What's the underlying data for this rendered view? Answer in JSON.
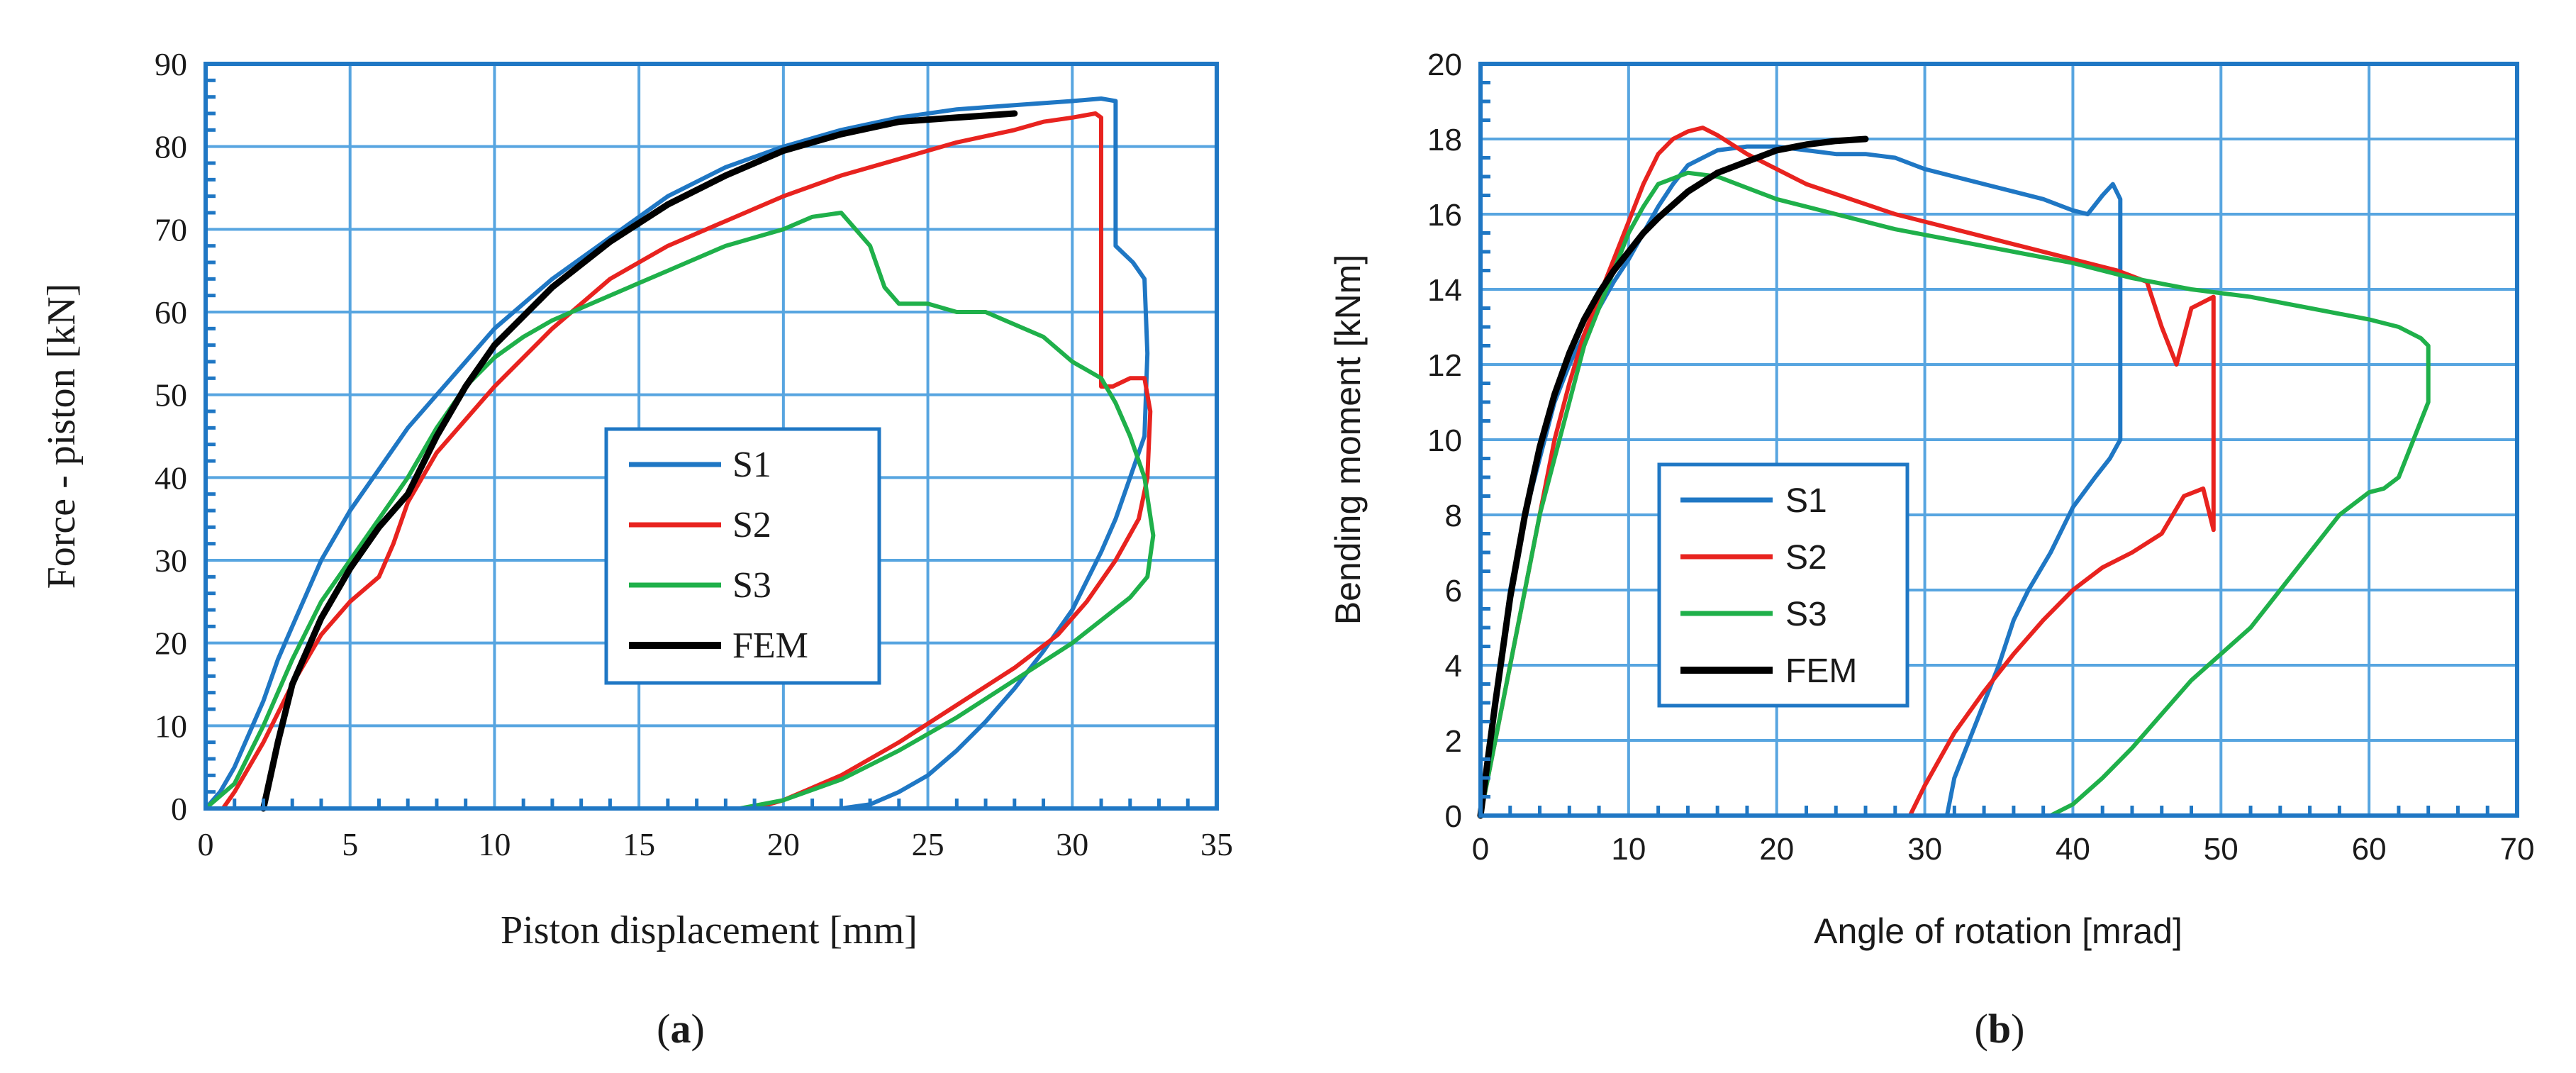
{
  "chart_data": [
    {
      "type": "line",
      "panel": "a",
      "caption_open": "(",
      "caption_letter": "a",
      "caption_close": ")",
      "title": "",
      "xlabel": "Piston displacement [mm]",
      "ylabel": "Force - piston [kN]",
      "xlim": [
        0,
        35
      ],
      "ylim": [
        0,
        90
      ],
      "xticks": [
        0,
        5,
        10,
        15,
        20,
        25,
        30,
        35
      ],
      "yticks": [
        0,
        10,
        20,
        30,
        40,
        50,
        60,
        70,
        80,
        90
      ],
      "grid": true,
      "legend": "center",
      "series": [
        {
          "name": "S1",
          "color": "#1f77c4",
          "x": [
            0,
            0.5,
            1,
            1.5,
            2,
            2.5,
            3,
            3.5,
            4,
            5,
            6,
            7,
            8,
            9,
            10,
            12,
            14,
            16,
            18,
            20,
            22,
            24,
            26,
            28,
            30,
            31,
            31.5,
            31.5,
            32.1,
            32.5,
            32.6,
            32.5,
            32,
            31.5,
            31,
            30,
            29,
            28,
            27,
            26,
            25,
            24,
            23,
            22
          ],
          "y": [
            0,
            2,
            5,
            9,
            13,
            18,
            22,
            26,
            30,
            36,
            41,
            46,
            50,
            54,
            58,
            64,
            69,
            74,
            77.5,
            80,
            82,
            83.5,
            84.5,
            85,
            85.5,
            85.8,
            85.5,
            68,
            66,
            64,
            55,
            45,
            40,
            35,
            31,
            24,
            19,
            14.5,
            10.5,
            7,
            4,
            2,
            0.5,
            0
          ]
        },
        {
          "name": "S2",
          "color": "#e8231f",
          "x": [
            0.6,
            1,
            2,
            3,
            4,
            5,
            6,
            6.5,
            7,
            8,
            10,
            12,
            14,
            16,
            18,
            20,
            22,
            24,
            26,
            28,
            29,
            30,
            30.8,
            31,
            31,
            31.4,
            32,
            32.5,
            32.7,
            32.6,
            32.3,
            31.5,
            30.5,
            29.5,
            28,
            26,
            24,
            22,
            20,
            19
          ],
          "y": [
            0,
            2,
            8,
            15,
            21,
            25,
            28,
            32,
            37,
            43,
            51,
            58,
            64,
            68,
            71,
            74,
            76.5,
            78.5,
            80.5,
            82,
            83,
            83.5,
            84,
            83.5,
            51,
            51,
            52,
            52,
            48,
            40,
            35,
            30,
            25,
            21,
            17,
            12.5,
            8,
            4,
            1,
            0
          ]
        },
        {
          "name": "S3",
          "color": "#1fb04a",
          "x": [
            0,
            1,
            2,
            3,
            4,
            5,
            6,
            7,
            8,
            9,
            10,
            11,
            12,
            14,
            16,
            18,
            20,
            21,
            22,
            22.5,
            23,
            23.5,
            24,
            25,
            26,
            27,
            28,
            29,
            30,
            31,
            31.5,
            32,
            32.5,
            32.8,
            32.6,
            32,
            30,
            28,
            26,
            24,
            22,
            20,
            18.5
          ],
          "y": [
            0,
            3,
            10,
            18,
            25,
            30,
            35,
            40,
            46,
            51,
            54.5,
            57,
            59,
            62,
            65,
            68,
            70,
            71.5,
            72,
            70,
            68,
            63,
            61,
            61,
            60,
            60,
            58.5,
            57,
            54,
            52,
            49,
            45,
            40,
            33,
            28,
            25.5,
            20,
            15.5,
            11,
            7,
            3.5,
            1,
            0
          ]
        },
        {
          "name": "FEM",
          "color": "#000000",
          "x": [
            2,
            2.5,
            3,
            4,
            5,
            6,
            7,
            8,
            9,
            10,
            12,
            14,
            16,
            18,
            20,
            22,
            24,
            26,
            28
          ],
          "y": [
            0,
            8,
            15,
            23,
            29,
            34,
            38,
            45,
            51,
            56,
            63,
            68.5,
            73,
            76.5,
            79.5,
            81.5,
            83,
            83.5,
            84
          ]
        }
      ]
    },
    {
      "type": "line",
      "panel": "b",
      "caption_open": "(",
      "caption_letter": "b",
      "caption_close": ")",
      "title": "",
      "xlabel": "Angle of rotation [mrad]",
      "ylabel": "Bending moment [kNm]",
      "xlim": [
        0,
        70
      ],
      "ylim": [
        0,
        20
      ],
      "xticks": [
        0,
        10,
        20,
        30,
        40,
        50,
        60,
        70
      ],
      "yticks": [
        0,
        2,
        4,
        6,
        8,
        10,
        12,
        14,
        16,
        18,
        20
      ],
      "grid": true,
      "legend": "center-left",
      "series": [
        {
          "name": "S1",
          "color": "#1f77c4",
          "x": [
            0,
            1,
            2,
            3,
            4,
            5,
            6,
            7,
            8,
            9,
            10,
            11,
            12,
            13,
            14,
            16,
            18,
            20,
            22,
            24,
            26,
            28,
            30,
            32,
            34,
            36,
            38,
            40,
            41,
            42,
            42.7,
            43.2,
            43.2,
            42.5,
            41.5,
            40,
            38.5,
            37,
            36,
            35,
            34,
            33,
            32,
            31.5
          ],
          "y": [
            0,
            3,
            6,
            8,
            9.5,
            11,
            12,
            12.8,
            13.5,
            14.2,
            14.8,
            15.5,
            16.2,
            16.8,
            17.3,
            17.7,
            17.8,
            17.8,
            17.7,
            17.6,
            17.6,
            17.5,
            17.2,
            17,
            16.8,
            16.6,
            16.4,
            16.1,
            16,
            16.5,
            16.8,
            16.4,
            10,
            9.5,
            9,
            8.2,
            7,
            6,
            5.2,
            4,
            3,
            2,
            1,
            0
          ]
        },
        {
          "name": "S2",
          "color": "#e8231f",
          "x": [
            0,
            1,
            2,
            3,
            4,
            5,
            6,
            7,
            8,
            9,
            10,
            11,
            12,
            13,
            14,
            15,
            16,
            18,
            20,
            22,
            25,
            28,
            31,
            34,
            37,
            40,
            43,
            45,
            46,
            47,
            48,
            49.5,
            49.5,
            48.8,
            47.5,
            46,
            44,
            42,
            40,
            38,
            36,
            34,
            32,
            30,
            29
          ],
          "y": [
            0,
            2,
            4,
            6,
            8,
            10,
            11.5,
            12.8,
            13.8,
            14.8,
            15.8,
            16.8,
            17.6,
            18,
            18.2,
            18.3,
            18.1,
            17.6,
            17.2,
            16.8,
            16.4,
            16,
            15.7,
            15.4,
            15.1,
            14.8,
            14.5,
            14.2,
            13,
            12,
            13.5,
            13.8,
            7.6,
            8.7,
            8.5,
            7.5,
            7,
            6.6,
            6,
            5.2,
            4.3,
            3.3,
            2.2,
            0.8,
            0
          ]
        },
        {
          "name": "S3",
          "color": "#1fb04a",
          "x": [
            0,
            1,
            2,
            3,
            4,
            5,
            6,
            7,
            8,
            9,
            10,
            11,
            12,
            14,
            16,
            18,
            20,
            24,
            28,
            32,
            36,
            40,
            44,
            48,
            52,
            56,
            60,
            62,
            63.5,
            64,
            64,
            63,
            62,
            61,
            60,
            58,
            56,
            54,
            52,
            50,
            48,
            46,
            44,
            42,
            40,
            38.5
          ],
          "y": [
            0,
            2,
            4,
            6,
            8,
            9.5,
            11,
            12.5,
            13.5,
            14.5,
            15.5,
            16.2,
            16.8,
            17.1,
            17,
            16.7,
            16.4,
            16,
            15.6,
            15.3,
            15,
            14.7,
            14.3,
            14,
            13.8,
            13.5,
            13.2,
            13,
            12.7,
            12.5,
            11,
            10,
            9,
            8.7,
            8.6,
            8,
            7,
            6,
            5,
            4.3,
            3.6,
            2.7,
            1.8,
            1,
            0.3,
            0
          ]
        },
        {
          "name": "FEM",
          "color": "#000000",
          "x": [
            0,
            0.5,
            1,
            2,
            3,
            4,
            5,
            6,
            7,
            8,
            9,
            10,
            11,
            12,
            14,
            16,
            18,
            20,
            22,
            24,
            26
          ],
          "y": [
            0,
            1.5,
            3,
            5.8,
            8,
            9.8,
            11.2,
            12.3,
            13.2,
            13.9,
            14.5,
            15,
            15.5,
            15.9,
            16.6,
            17.1,
            17.4,
            17.7,
            17.85,
            17.95,
            18
          ]
        }
      ]
    }
  ]
}
